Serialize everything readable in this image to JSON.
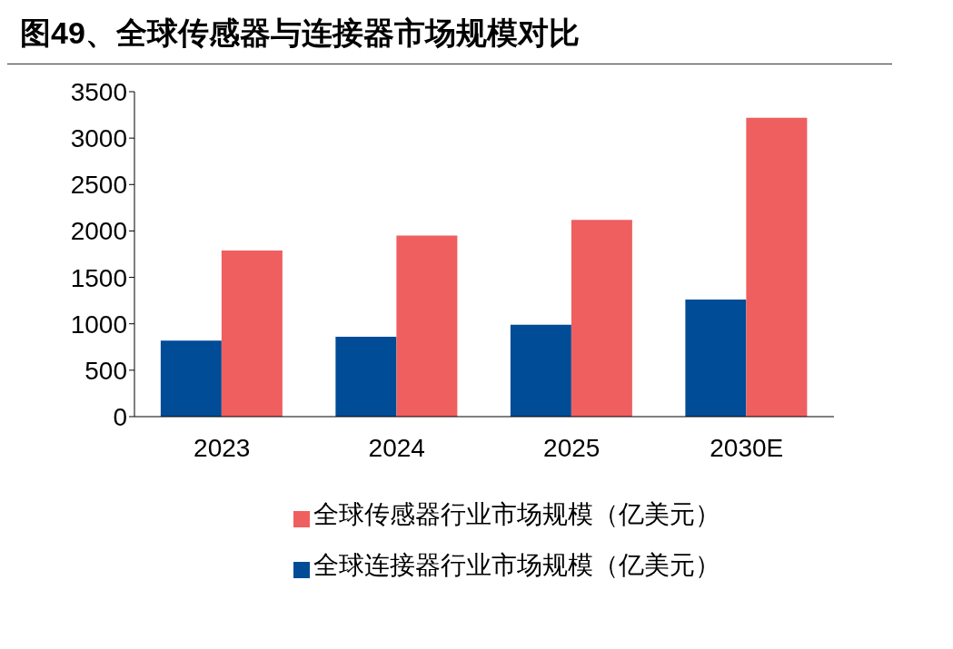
{
  "chart_data": {
    "type": "bar",
    "title": "图49、全球传感器与连接器市场规模对比",
    "categories": [
      "2023",
      "2024",
      "2025",
      "2030E"
    ],
    "series": [
      {
        "name": "全球连接器行业市场规模（亿美元）",
        "color": "#004c97",
        "values": [
          820,
          860,
          990,
          1260
        ]
      },
      {
        "name": "全球传感器行业市场规模（亿美元）",
        "color": "#ef5f5f",
        "values": [
          1790,
          1950,
          2120,
          3220
        ]
      }
    ],
    "ylim": [
      0,
      3500
    ],
    "yticks": [
      0,
      500,
      1000,
      1500,
      2000,
      2500,
      3000,
      3500
    ],
    "grid": false,
    "legend": "bottom"
  }
}
